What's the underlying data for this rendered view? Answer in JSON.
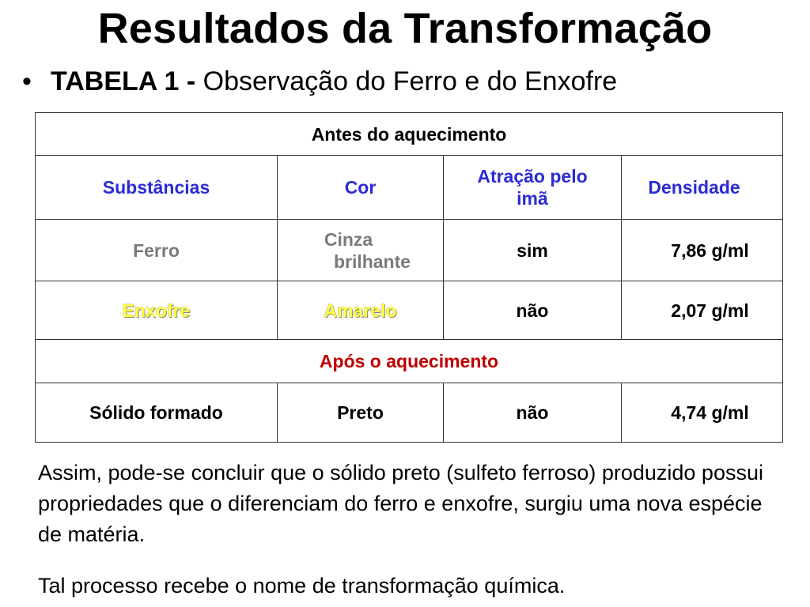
{
  "slide": {
    "title": "Resultados da Transformação",
    "bullet": {
      "symbol": "•",
      "bold_part": "TABELA 1 -",
      "normal_part": "Observação do Ferro e do Enxofre"
    }
  },
  "table": {
    "section_before": "Antes do aquecimento",
    "headers": {
      "substance": "Substâncias",
      "color": "Cor",
      "magnet_line1": "Atração pelo",
      "magnet_line2": "imã",
      "density": "Densidade"
    },
    "rows": [
      {
        "substance": "Ferro",
        "color_line1": "Cinza",
        "color_line2": "brilhante",
        "magnet": "sim",
        "density": "7,86 g/ml"
      },
      {
        "substance": "Enxofre",
        "color": "Amarelo",
        "magnet": "não",
        "density": "2,07 g/ml"
      }
    ],
    "section_after": "Após o aquecimento",
    "after_row": {
      "substance": "Sólido formado",
      "color": "Preto",
      "magnet": "não",
      "density": "4,74 g/ml"
    }
  },
  "conclusion": {
    "paragraph1": "Assim, pode-se concluir que o sólido preto (sulfeto ferroso) produzido possui propriedades que o diferenciam do ferro e enxofre, surgiu uma nova espécie de matéria.",
    "paragraph2": "Tal processo recebe o nome de transformação química."
  },
  "colors": {
    "header_blue": "#2b2bd6",
    "iron_gray": "#7a7a7a",
    "sulfur_yellow": "#ffff44",
    "after_red": "#c00000"
  }
}
